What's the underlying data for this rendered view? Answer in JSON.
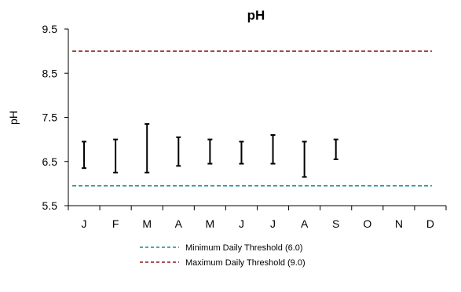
{
  "chart_data": {
    "type": "range",
    "title": "pH",
    "ylabel": "pH",
    "xlabel": "",
    "ylim": [
      5.5,
      9.5
    ],
    "yticks": [
      "5.5",
      "6.5",
      "7.5",
      "8.5",
      "9.5"
    ],
    "categories": [
      "J",
      "F",
      "M",
      "A",
      "M",
      "J",
      "J",
      "A",
      "S",
      "O",
      "N",
      "D"
    ],
    "ranges": [
      {
        "low": 6.35,
        "high": 6.95
      },
      {
        "low": 6.25,
        "high": 7.0
      },
      {
        "low": 6.25,
        "high": 7.35
      },
      {
        "low": 6.4,
        "high": 7.05
      },
      {
        "low": 6.45,
        "high": 7.0
      },
      {
        "low": 6.45,
        "high": 6.95
      },
      {
        "low": 6.45,
        "high": 7.1
      },
      {
        "low": 6.15,
        "high": 6.95
      },
      {
        "low": 6.55,
        "high": 7.0
      },
      null,
      null,
      null
    ],
    "thresholds": [
      {
        "name": "Minimum Daily Threshold (6.0)",
        "value": 5.95,
        "color": "#1a8a8a"
      },
      {
        "name": "Maximum Daily Threshold (9.0)",
        "value": 9.0,
        "color": "#8b1a1a"
      }
    ],
    "range_color": "#000000",
    "grid": false,
    "legend": "bottom"
  }
}
